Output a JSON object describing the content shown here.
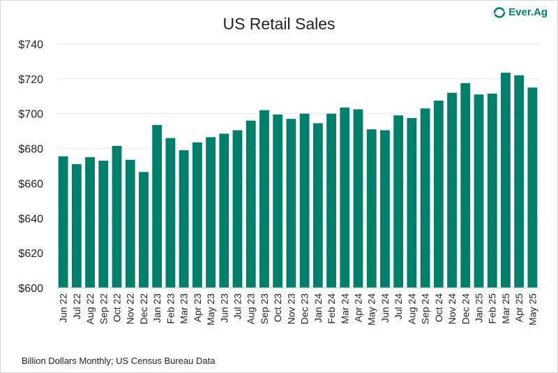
{
  "brand": {
    "logo_text": "Ever.Ag",
    "accent_color": "#00806a"
  },
  "footnote": "Billion Dollars Monthly; US Census Bureau Data",
  "chart_data": {
    "type": "bar",
    "title": "US Retail Sales",
    "xlabel": "",
    "ylabel": "",
    "ylim": [
      600,
      740
    ],
    "yticks": [
      600,
      620,
      640,
      660,
      680,
      700,
      720,
      740
    ],
    "ytick_prefix": "$",
    "grid": "horizontal",
    "bar_color": "#00806a",
    "categories": [
      "Jun 22",
      "Jul 22",
      "Aug 22",
      "Sep 22",
      "Oct 22",
      "Nov 22",
      "Dec 22",
      "Jan 23",
      "Feb 23",
      "Mar 23",
      "Apr 23",
      "May 23",
      "Jun 23",
      "Jul 23",
      "Aug 23",
      "Sep 23",
      "Oct 23",
      "Nov 23",
      "Dec 23",
      "Jan 24",
      "Feb 24",
      "Mar 24",
      "Apr 24",
      "May 24",
      "Jun 24",
      "Jul 24",
      "Aug 24",
      "Sep 24",
      "Oct 24",
      "Nov 24",
      "Dec 24",
      "Jan 25",
      "Feb 25",
      "Mar 25",
      "Apr 25",
      "May 25"
    ],
    "values": [
      675.5,
      671,
      675,
      673,
      681.5,
      673.5,
      666.5,
      693.5,
      686,
      679,
      683.5,
      686.5,
      688.5,
      690.5,
      696,
      702,
      699.5,
      697,
      700,
      694.5,
      700,
      703.5,
      702.5,
      691,
      690.5,
      699,
      697.5,
      703,
      707.5,
      712,
      717.5,
      711,
      711.5,
      723.5,
      722,
      715
    ]
  }
}
